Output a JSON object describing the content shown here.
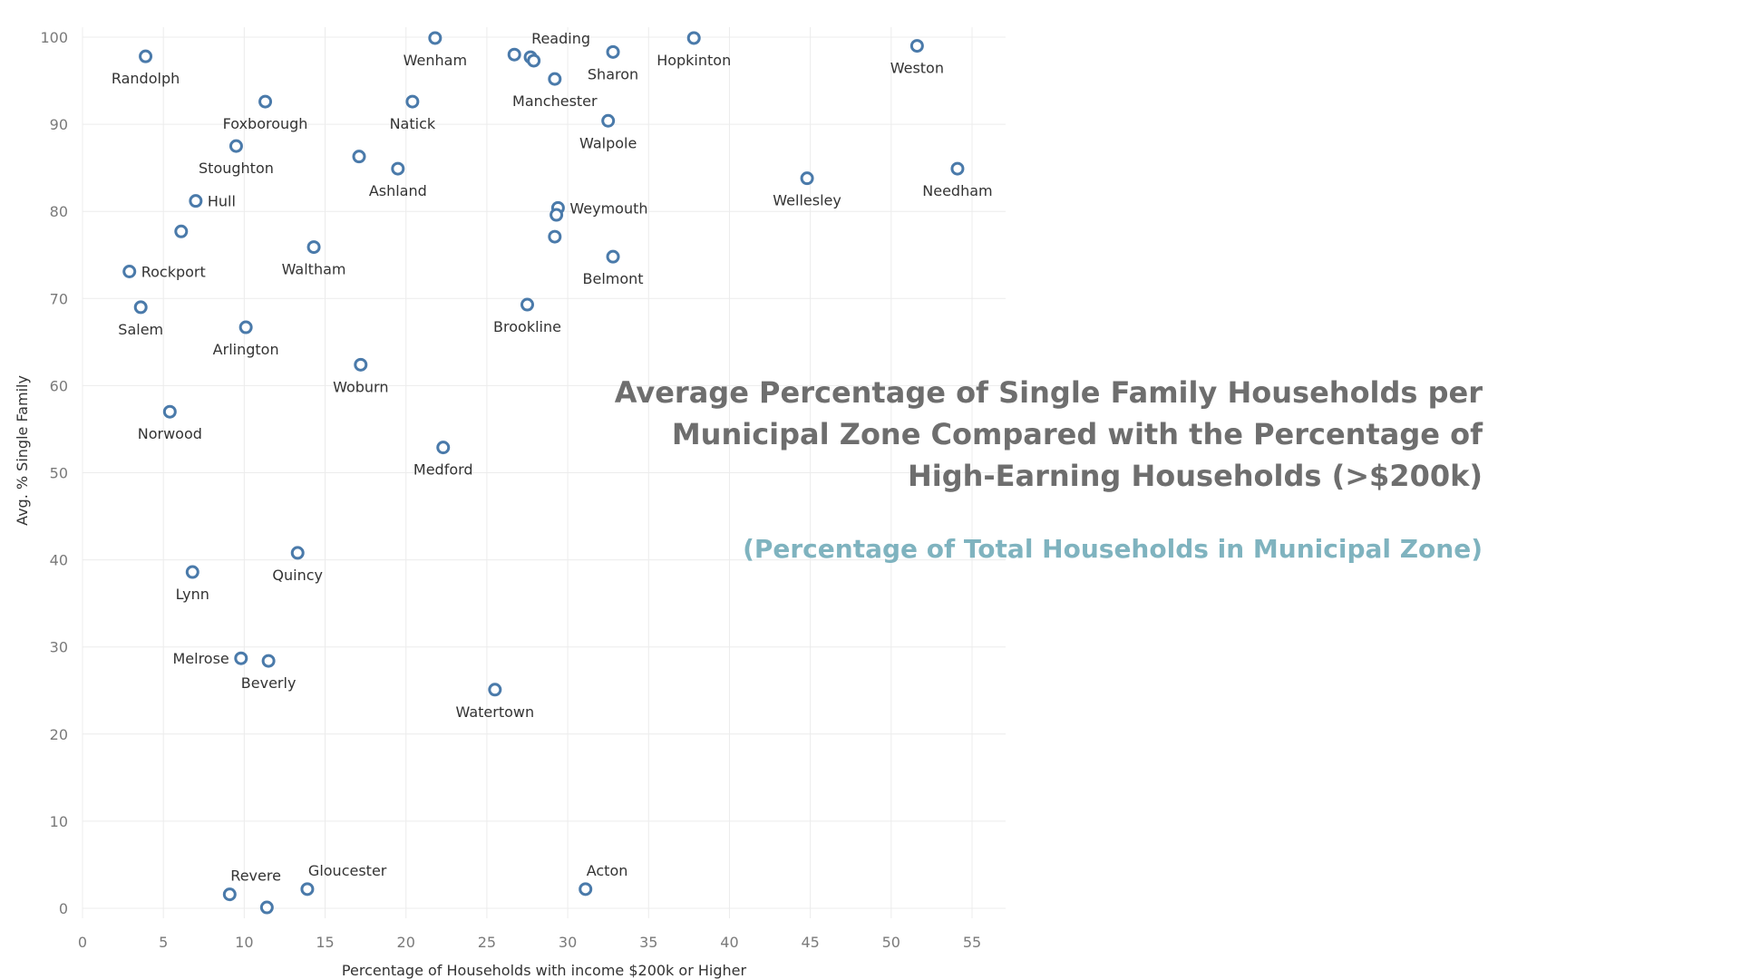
{
  "chart_data": {
    "type": "scatter",
    "title": "Average Percentage of Single Family Households per Municipal Zone Compared with the Percentage of High-Earning Households (>$200k)",
    "subtitle": "(Percentage of Total Households in Municipal Zone)",
    "xlabel": "Percentage of Households with income $200k or Higher",
    "ylabel": "Avg. % Single Family",
    "xlim": [
      0,
      57
    ],
    "ylim": [
      -1,
      101
    ],
    "xticks": [
      0,
      5,
      10,
      15,
      20,
      25,
      30,
      35,
      40,
      45,
      50,
      55
    ],
    "yticks": [
      0,
      10,
      20,
      30,
      40,
      50,
      60,
      70,
      80,
      90,
      100
    ],
    "grid": true,
    "point_color": "#4a7aaa",
    "points": [
      {
        "label": "Randolph",
        "x": 3.9,
        "y": 97.8,
        "pos": "below"
      },
      {
        "label": "Foxborough",
        "x": 11.3,
        "y": 92.6,
        "pos": "below"
      },
      {
        "label": "Stoughton",
        "x": 9.5,
        "y": 87.5,
        "pos": "below"
      },
      {
        "label": "Hull",
        "x": 7.0,
        "y": 81.2,
        "pos": "right"
      },
      {
        "label": "",
        "x": 6.1,
        "y": 77.7
      },
      {
        "label": "Rockport",
        "x": 2.9,
        "y": 73.1,
        "pos": "right"
      },
      {
        "label": "Salem",
        "x": 3.6,
        "y": 69.0,
        "pos": "below"
      },
      {
        "label": "Arlington",
        "x": 10.1,
        "y": 66.7,
        "pos": "below"
      },
      {
        "label": "Norwood",
        "x": 5.4,
        "y": 57.0,
        "pos": "below"
      },
      {
        "label": "Lynn",
        "x": 6.8,
        "y": 38.6,
        "pos": "below"
      },
      {
        "label": "Quincy",
        "x": 13.3,
        "y": 40.8,
        "pos": "below"
      },
      {
        "label": "Melrose",
        "x": 9.8,
        "y": 28.7,
        "pos": "left"
      },
      {
        "label": "Beverly",
        "x": 11.5,
        "y": 28.4,
        "pos": "below"
      },
      {
        "label": "Revere",
        "x": 9.1,
        "y": 1.6,
        "pos": "above-right"
      },
      {
        "label": "",
        "x": 11.4,
        "y": 0.1
      },
      {
        "label": "Gloucester",
        "x": 13.9,
        "y": 2.2,
        "pos": "above-right"
      },
      {
        "label": "Waltham",
        "x": 14.3,
        "y": 75.9,
        "pos": "below"
      },
      {
        "label": "",
        "x": 17.1,
        "y": 86.3
      },
      {
        "label": "Ashland",
        "x": 19.5,
        "y": 84.9,
        "pos": "below"
      },
      {
        "label": "Natick",
        "x": 20.4,
        "y": 92.6,
        "pos": "below"
      },
      {
        "label": "Wenham",
        "x": 21.8,
        "y": 99.9,
        "pos": "below"
      },
      {
        "label": "Woburn",
        "x": 17.2,
        "y": 62.4,
        "pos": "below"
      },
      {
        "label": "Medford",
        "x": 22.3,
        "y": 52.9,
        "pos": "below"
      },
      {
        "label": "Watertown",
        "x": 25.5,
        "y": 25.1,
        "pos": "below"
      },
      {
        "label": "Acton",
        "x": 31.1,
        "y": 2.2,
        "pos": "above-right"
      },
      {
        "label": "",
        "x": 26.7,
        "y": 98.0
      },
      {
        "label": "Reading",
        "x": 27.7,
        "y": 97.7,
        "pos": "above-right"
      },
      {
        "label": "",
        "x": 27.9,
        "y": 97.3
      },
      {
        "label": "Manchester",
        "x": 29.2,
        "y": 95.2,
        "pos": "below"
      },
      {
        "label": "Sharon",
        "x": 32.8,
        "y": 98.3,
        "pos": "below"
      },
      {
        "label": "Walpole",
        "x": 32.5,
        "y": 90.4,
        "pos": "below"
      },
      {
        "label": "Weymouth",
        "x": 29.4,
        "y": 80.4,
        "pos": "right"
      },
      {
        "label": "",
        "x": 29.3,
        "y": 79.6
      },
      {
        "label": "",
        "x": 29.2,
        "y": 77.1
      },
      {
        "label": "Belmont",
        "x": 32.8,
        "y": 74.8,
        "pos": "below"
      },
      {
        "label": "Brookline",
        "x": 27.5,
        "y": 69.3,
        "pos": "below"
      },
      {
        "label": "Hopkinton",
        "x": 37.8,
        "y": 99.9,
        "pos": "below"
      },
      {
        "label": "Wellesley",
        "x": 44.8,
        "y": 83.8,
        "pos": "below"
      },
      {
        "label": "Weston",
        "x": 51.6,
        "y": 99.0,
        "pos": "below"
      },
      {
        "label": "Needham",
        "x": 54.1,
        "y": 84.9,
        "pos": "below"
      }
    ]
  }
}
